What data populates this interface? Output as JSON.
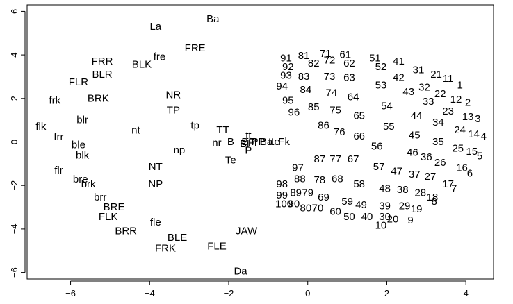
{
  "chart_data": {
    "type": "scatter",
    "title": "",
    "xlabel": "",
    "ylabel": "",
    "xlim": [
      -7.1,
      4.7
    ],
    "ylim": [
      -6.3,
      6.3
    ],
    "grid": false,
    "legend": "none",
    "marker": "text labels",
    "x_ticks": [
      -6,
      -4,
      -2,
      0,
      2,
      4
    ],
    "y_ticks": [
      -6,
      -4,
      -2,
      0,
      2,
      4,
      6
    ],
    "x_tick_labels": [
      "−6",
      "−4",
      "−2",
      "0",
      "2",
      "4"
    ],
    "y_tick_labels": [
      "−6",
      "−4",
      "−2",
      "0",
      "2",
      "4",
      "6"
    ],
    "points": [
      {
        "label": "La",
        "x": -3.85,
        "y": 5.3
      },
      {
        "label": "Ba",
        "x": -2.4,
        "y": 5.65
      },
      {
        "label": "FRE",
        "x": -2.85,
        "y": 4.3
      },
      {
        "label": "fre",
        "x": -3.75,
        "y": 3.9
      },
      {
        "label": "FRR",
        "x": -5.2,
        "y": 3.7
      },
      {
        "label": "BLK",
        "x": -4.2,
        "y": 3.55
      },
      {
        "label": "BLR",
        "x": -5.2,
        "y": 3.1
      },
      {
        "label": "FLR",
        "x": -5.8,
        "y": 2.75
      },
      {
        "label": "frk",
        "x": -6.4,
        "y": 1.9
      },
      {
        "label": "BRK",
        "x": -5.3,
        "y": 2.0
      },
      {
        "label": "NR",
        "x": -3.4,
        "y": 2.15
      },
      {
        "label": "TP",
        "x": -3.4,
        "y": 1.45
      },
      {
        "label": "blr",
        "x": -5.7,
        "y": 1.0
      },
      {
        "label": "flk",
        "x": -6.75,
        "y": 0.7
      },
      {
        "label": "frr",
        "x": -6.3,
        "y": 0.22
      },
      {
        "label": "nt",
        "x": -4.35,
        "y": 0.52
      },
      {
        "label": "tp",
        "x": -2.85,
        "y": 0.75
      },
      {
        "label": "TT",
        "x": -2.15,
        "y": 0.55
      },
      {
        "label": "ble",
        "x": -5.8,
        "y": -0.15
      },
      {
        "label": "blk",
        "x": -5.7,
        "y": -0.62
      },
      {
        "label": "np",
        "x": -3.25,
        "y": -0.38
      },
      {
        "label": "nr",
        "x": -2.3,
        "y": -0.05
      },
      {
        "label": "Te",
        "x": -1.95,
        "y": -0.85
      },
      {
        "label": "NT",
        "x": -3.85,
        "y": -1.15
      },
      {
        "label": "flr",
        "x": -6.3,
        "y": -1.3
      },
      {
        "label": "bre",
        "x": -5.75,
        "y": -1.72
      },
      {
        "label": "brk",
        "x": -5.55,
        "y": -1.95
      },
      {
        "label": "NP",
        "x": -3.85,
        "y": -1.95
      },
      {
        "label": "brr",
        "x": -5.25,
        "y": -2.55
      },
      {
        "label": "BRE",
        "x": -4.9,
        "y": -3.0
      },
      {
        "label": "FLK",
        "x": -5.05,
        "y": -3.45
      },
      {
        "label": "fle",
        "x": -3.85,
        "y": -3.7
      },
      {
        "label": "BRR",
        "x": -4.6,
        "y": -4.1
      },
      {
        "label": "BLE",
        "x": -3.3,
        "y": -4.4
      },
      {
        "label": "FRK",
        "x": -3.6,
        "y": -4.9
      },
      {
        "label": "FLE",
        "x": -2.3,
        "y": -4.8
      },
      {
        "label": "JAW",
        "x": -1.55,
        "y": -4.1
      },
      {
        "label": "Da",
        "x": -1.7,
        "y": -5.95
      },
      {
        "label": "B",
        "x": -1.95,
        "y": 0.0
      },
      {
        "label": "tt",
        "x": -1.5,
        "y": 0.28
      },
      {
        "label": "P",
        "x": -1.5,
        "y": -0.4
      },
      {
        "label": "Bl",
        "x": -1.6,
        "y": -0.1
      },
      {
        "label": "BP",
        "x": -1.5,
        "y": 0.0
      },
      {
        "label": "Fl",
        "x": -1.4,
        "y": -0.05
      },
      {
        "label": "PP",
        "x": -1.25,
        "y": 0.0
      },
      {
        "label": "Ba",
        "x": -1.05,
        "y": 0.0
      },
      {
        "label": "tte",
        "x": -0.85,
        "y": 0.0
      },
      {
        "label": "Fk",
        "x": -0.6,
        "y": 0.0
      },
      {
        "label": "1",
        "x": 3.85,
        "y": 2.6
      },
      {
        "label": "2",
        "x": 4.05,
        "y": 1.8
      },
      {
        "label": "3",
        "x": 4.3,
        "y": 1.05
      },
      {
        "label": "4",
        "x": 4.45,
        "y": 0.25
      },
      {
        "label": "5",
        "x": 4.35,
        "y": -0.65
      },
      {
        "label": "6",
        "x": 4.1,
        "y": -1.45
      },
      {
        "label": "7",
        "x": 3.7,
        "y": -2.15
      },
      {
        "label": "8",
        "x": 3.2,
        "y": -2.75
      },
      {
        "label": "9",
        "x": 2.6,
        "y": -3.6
      },
      {
        "label": "10",
        "x": 1.85,
        "y": -3.85
      },
      {
        "label": "11",
        "x": 3.55,
        "y": 2.9
      },
      {
        "label": "12",
        "x": 3.75,
        "y": 1.95
      },
      {
        "label": "13",
        "x": 4.05,
        "y": 1.15
      },
      {
        "label": "14",
        "x": 4.2,
        "y": 0.35
      },
      {
        "label": "15",
        "x": 4.15,
        "y": -0.45
      },
      {
        "label": "16",
        "x": 3.9,
        "y": -1.2
      },
      {
        "label": "17",
        "x": 3.55,
        "y": -1.95
      },
      {
        "label": "18",
        "x": 3.15,
        "y": -2.55
      },
      {
        "label": "19",
        "x": 2.75,
        "y": -3.1
      },
      {
        "label": "20",
        "x": 2.15,
        "y": -3.55
      },
      {
        "label": "21",
        "x": 3.25,
        "y": 3.1
      },
      {
        "label": "22",
        "x": 3.35,
        "y": 2.2
      },
      {
        "label": "23",
        "x": 3.55,
        "y": 1.4
      },
      {
        "label": "24",
        "x": 3.85,
        "y": 0.55
      },
      {
        "label": "25",
        "x": 3.8,
        "y": -0.3
      },
      {
        "label": "26",
        "x": 3.35,
        "y": -0.95
      },
      {
        "label": "27",
        "x": 3.1,
        "y": -1.6
      },
      {
        "label": "28",
        "x": 2.85,
        "y": -2.35
      },
      {
        "label": "29",
        "x": 2.45,
        "y": -2.95
      },
      {
        "label": "30",
        "x": 1.95,
        "y": -3.45
      },
      {
        "label": "31",
        "x": 2.8,
        "y": 3.3
      },
      {
        "label": "32",
        "x": 2.95,
        "y": 2.5
      },
      {
        "label": "33",
        "x": 3.05,
        "y": 1.85
      },
      {
        "label": "34",
        "x": 3.3,
        "y": 0.9
      },
      {
        "label": "35",
        "x": 3.3,
        "y": 0.0
      },
      {
        "label": "36",
        "x": 3.0,
        "y": -0.7
      },
      {
        "label": "37",
        "x": 2.7,
        "y": -1.5
      },
      {
        "label": "38",
        "x": 2.4,
        "y": -2.2
      },
      {
        "label": "39",
        "x": 1.95,
        "y": -2.95
      },
      {
        "label": "40",
        "x": 1.5,
        "y": -3.45
      },
      {
        "label": "41",
        "x": 2.3,
        "y": 3.7
      },
      {
        "label": "42",
        "x": 2.3,
        "y": 2.95
      },
      {
        "label": "43",
        "x": 2.55,
        "y": 2.3
      },
      {
        "label": "44",
        "x": 2.75,
        "y": 1.2
      },
      {
        "label": "45",
        "x": 2.7,
        "y": 0.3
      },
      {
        "label": "46",
        "x": 2.65,
        "y": -0.5
      },
      {
        "label": "47",
        "x": 2.25,
        "y": -1.35
      },
      {
        "label": "48",
        "x": 1.95,
        "y": -2.15
      },
      {
        "label": "49",
        "x": 1.35,
        "y": -2.9
      },
      {
        "label": "50",
        "x": 1.05,
        "y": -3.45
      },
      {
        "label": "51",
        "x": 1.7,
        "y": 3.85
      },
      {
        "label": "52",
        "x": 1.85,
        "y": 3.45
      },
      {
        "label": "53",
        "x": 1.85,
        "y": 2.6
      },
      {
        "label": "54",
        "x": 2.0,
        "y": 1.65
      },
      {
        "label": "55",
        "x": 2.05,
        "y": 0.7
      },
      {
        "label": "56",
        "x": 1.75,
        "y": -0.2
      },
      {
        "label": "57",
        "x": 1.8,
        "y": -1.15
      },
      {
        "label": "58",
        "x": 1.3,
        "y": -1.95
      },
      {
        "label": "59",
        "x": 1.0,
        "y": -2.75
      },
      {
        "label": "60",
        "x": 0.7,
        "y": -3.2
      },
      {
        "label": "61",
        "x": 0.95,
        "y": 4.0
      },
      {
        "label": "62",
        "x": 1.05,
        "y": 3.6
      },
      {
        "label": "63",
        "x": 1.05,
        "y": 2.95
      },
      {
        "label": "64",
        "x": 1.15,
        "y": 2.05
      },
      {
        "label": "65",
        "x": 1.3,
        "y": 1.2
      },
      {
        "label": "66",
        "x": 1.3,
        "y": 0.25
      },
      {
        "label": "67",
        "x": 1.15,
        "y": -0.8
      },
      {
        "label": "68",
        "x": 0.75,
        "y": -1.7
      },
      {
        "label": "69",
        "x": 0.4,
        "y": -2.55
      },
      {
        "label": "70",
        "x": 0.25,
        "y": -3.05
      },
      {
        "label": "71",
        "x": 0.45,
        "y": 4.05
      },
      {
        "label": "72",
        "x": 0.55,
        "y": 3.75
      },
      {
        "label": "73",
        "x": 0.55,
        "y": 3.0
      },
      {
        "label": "74",
        "x": 0.6,
        "y": 2.25
      },
      {
        "label": "75",
        "x": 0.7,
        "y": 1.45
      },
      {
        "label": "76",
        "x": 0.8,
        "y": 0.45
      },
      {
        "label": "77",
        "x": 0.7,
        "y": -0.8
      },
      {
        "label": "78",
        "x": 0.3,
        "y": -1.75
      },
      {
        "label": "79",
        "x": 0.0,
        "y": -2.35
      },
      {
        "label": "80",
        "x": -0.05,
        "y": -3.05
      },
      {
        "label": "81",
        "x": -0.1,
        "y": 3.95
      },
      {
        "label": "82",
        "x": 0.15,
        "y": 3.6
      },
      {
        "label": "83",
        "x": -0.1,
        "y": 3.0
      },
      {
        "label": "84",
        "x": -0.05,
        "y": 2.4
      },
      {
        "label": "85",
        "x": 0.15,
        "y": 1.6
      },
      {
        "label": "86",
        "x": 0.4,
        "y": 0.75
      },
      {
        "label": "87",
        "x": 0.3,
        "y": -0.8
      },
      {
        "label": "88",
        "x": -0.2,
        "y": -1.7
      },
      {
        "label": "89",
        "x": -0.3,
        "y": -2.35
      },
      {
        "label": "90",
        "x": -0.35,
        "y": -2.85
      },
      {
        "label": "91",
        "x": -0.55,
        "y": 3.85
      },
      {
        "label": "92",
        "x": -0.5,
        "y": 3.45
      },
      {
        "label": "93",
        "x": -0.55,
        "y": 3.05
      },
      {
        "label": "94",
        "x": -0.65,
        "y": 2.55
      },
      {
        "label": "95",
        "x": -0.5,
        "y": 1.9
      },
      {
        "label": "96",
        "x": -0.35,
        "y": 1.35
      },
      {
        "label": "97",
        "x": -0.25,
        "y": -1.2
      },
      {
        "label": "98",
        "x": -0.65,
        "y": -1.95
      },
      {
        "label": "99",
        "x": -0.65,
        "y": -2.45
      },
      {
        "label": "100",
        "x": -0.6,
        "y": -2.85
      }
    ]
  }
}
